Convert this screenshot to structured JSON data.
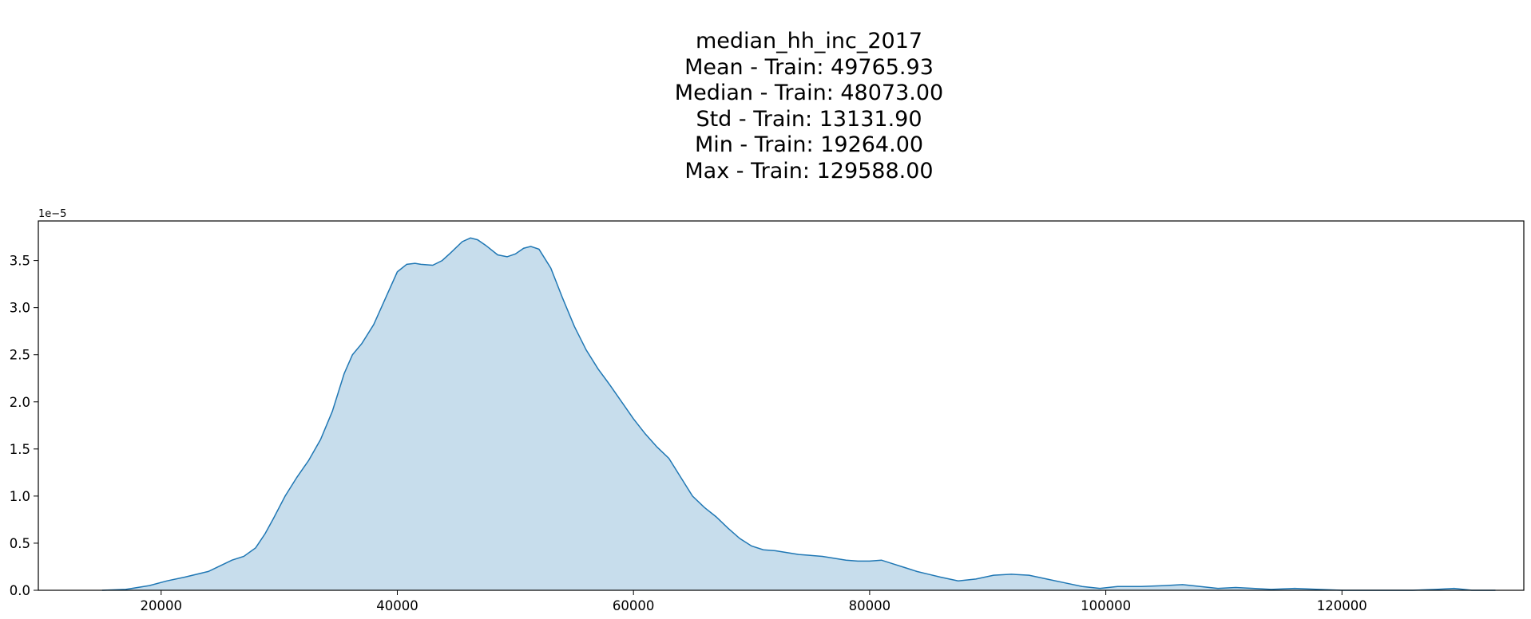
{
  "chart_data": {
    "type": "area",
    "title_lines": [
      "median_hh_inc_2017",
      "Mean - Train: 49765.93",
      "Median - Train: 48073.00",
      "Std - Train: 13131.90",
      "Min - Train: 19264.00",
      "Max - Train: 129588.00"
    ],
    "xlabel": "",
    "ylabel": "",
    "y_offset_label": "1e−5",
    "xlim": [
      9600,
      135400
    ],
    "ylim": [
      0,
      3.92
    ],
    "x_ticks": [
      20000,
      40000,
      60000,
      80000,
      100000,
      120000
    ],
    "x_tick_labels": [
      "20000",
      "40000",
      "60000",
      "80000",
      "100000",
      "120000"
    ],
    "y_ticks": [
      0,
      0.5,
      1.0,
      1.5,
      2.0,
      2.5,
      3.0,
      3.5
    ],
    "y_tick_labels": [
      "0.0",
      "0.5",
      "1.0",
      "1.5",
      "2.0",
      "2.5",
      "3.0",
      "3.5"
    ],
    "grid": false,
    "colors": {
      "line": "#1f77b4",
      "fill": "#1f77b4",
      "fill_opacity": 0.25
    },
    "series": [
      {
        "x": [
          15000,
          17000,
          19000,
          20500,
          22000,
          24000,
          25000,
          26000,
          27000,
          28000,
          28800,
          29500,
          30500,
          31500,
          32500,
          33500,
          34500,
          35500,
          36200,
          37000,
          38000,
          39000,
          40000,
          40800,
          41500,
          42000,
          43000,
          43800,
          44500,
          45500,
          46200,
          46800,
          47500,
          48500,
          49300,
          50000,
          50700,
          51300,
          52000,
          53000,
          54000,
          55000,
          56000,
          57000,
          58000,
          59000,
          60000,
          61000,
          62000,
          63000,
          64000,
          65000,
          66000,
          67000,
          68000,
          69000,
          70000,
          71000,
          72000,
          73000,
          74000,
          75000,
          76000,
          77000,
          78000,
          79000,
          80000,
          81000,
          82000,
          83000,
          84000,
          85000,
          86000,
          87500,
          89000,
          90500,
          92000,
          93500,
          95000,
          96500,
          98000,
          99500,
          101000,
          103000,
          105000,
          106500,
          108000,
          109500,
          111000,
          112500,
          114000,
          116000,
          118000,
          120000,
          122000,
          124000,
          126000,
          128000,
          129500,
          131000,
          133000
        ],
        "y": [
          0.0,
          0.01,
          0.05,
          0.1,
          0.14,
          0.2,
          0.26,
          0.32,
          0.36,
          0.45,
          0.6,
          0.76,
          1.0,
          1.2,
          1.38,
          1.6,
          1.9,
          2.3,
          2.5,
          2.62,
          2.82,
          3.1,
          3.38,
          3.46,
          3.47,
          3.46,
          3.45,
          3.5,
          3.58,
          3.7,
          3.74,
          3.72,
          3.66,
          3.56,
          3.54,
          3.57,
          3.63,
          3.65,
          3.62,
          3.42,
          3.1,
          2.8,
          2.55,
          2.35,
          2.18,
          2.0,
          1.82,
          1.66,
          1.52,
          1.4,
          1.2,
          1.0,
          0.88,
          0.78,
          0.66,
          0.55,
          0.47,
          0.43,
          0.42,
          0.4,
          0.38,
          0.37,
          0.36,
          0.34,
          0.32,
          0.31,
          0.31,
          0.32,
          0.28,
          0.24,
          0.2,
          0.17,
          0.14,
          0.1,
          0.12,
          0.16,
          0.17,
          0.16,
          0.12,
          0.08,
          0.04,
          0.02,
          0.04,
          0.04,
          0.05,
          0.06,
          0.04,
          0.02,
          0.03,
          0.02,
          0.01,
          0.02,
          0.01,
          0.0,
          0.0,
          0.0,
          0.0,
          0.01,
          0.02,
          0.0,
          0.0
        ]
      }
    ]
  }
}
